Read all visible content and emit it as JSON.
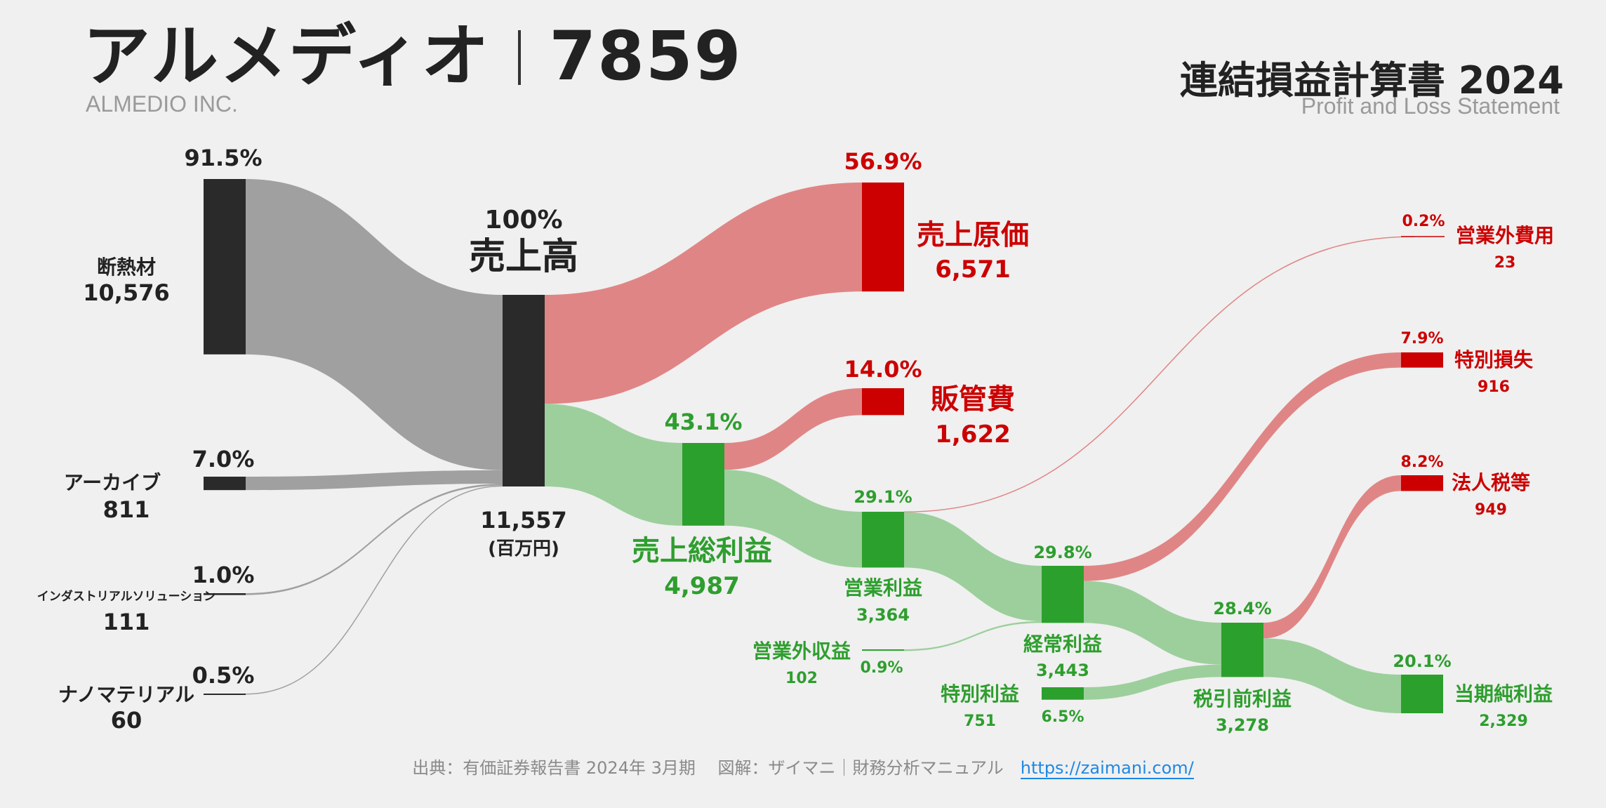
{
  "header": {
    "company": "アルメディオ",
    "code": "7859",
    "company_en": "ALMEDIO INC.",
    "statement_title": "連結損益計算書 2024",
    "statement_en": "Profit and Loss Statement"
  },
  "footer": {
    "source": "出典：有価証券報告書 2024年 3月期　 図解：ザイマニ｜財務分析マニュアル",
    "url": "https://zaimani.com/"
  },
  "colors": {
    "node_dark": "#2a2a2a",
    "flow_gray": "#a0a0a0",
    "cost_red": "#cc0000",
    "flow_red": "#e08585",
    "profit_green": "#2ca02c",
    "flow_green": "#9ccf9c",
    "label_green": "#2e9e2e",
    "label_dark": "#222222"
  },
  "chart_data": {
    "type": "sankey",
    "unit": "(百万円)",
    "segments": [
      {
        "name": "断熱材",
        "value": 10576,
        "pct": "91.5%"
      },
      {
        "name": "アーカイブ",
        "value": 811,
        "pct": "7.0%"
      },
      {
        "name": "インダストリアルソリューション",
        "value": 111,
        "pct": "1.0%"
      },
      {
        "name": "ナノマテリアル",
        "value": 60,
        "pct": "0.5%"
      }
    ],
    "revenue": {
      "name": "売上高",
      "value": 11557,
      "value_label": "11,557",
      "pct": "100%"
    },
    "cost_of_sales": {
      "name": "売上原価",
      "value": 6571,
      "value_label": "6,571",
      "pct": "56.9%"
    },
    "gross_profit": {
      "name": "売上総利益",
      "value": 4987,
      "value_label": "4,987",
      "pct": "43.1%"
    },
    "sga": {
      "name": "販管費",
      "value": 1622,
      "value_label": "1,622",
      "pct": "14.0%"
    },
    "operating_profit": {
      "name": "営業利益",
      "value": 3364,
      "value_label": "3,364",
      "pct": "29.1%"
    },
    "non_operating_expense": {
      "name": "営業外費用",
      "value": 23,
      "value_label": "23",
      "pct": "0.2%"
    },
    "non_operating_income": {
      "name": "営業外収益",
      "value": 102,
      "value_label": "102",
      "pct": "0.9%"
    },
    "ordinary_profit": {
      "name": "経常利益",
      "value": 3443,
      "value_label": "3,443",
      "pct": "29.8%"
    },
    "extraordinary_loss": {
      "name": "特別損失",
      "value": 916,
      "value_label": "916",
      "pct": "7.9%"
    },
    "extraordinary_income": {
      "name": "特別利益",
      "value": 751,
      "value_label": "751",
      "pct": "6.5%"
    },
    "pretax_profit": {
      "name": "税引前利益",
      "value": 3278,
      "value_label": "3,278",
      "pct": "28.4%"
    },
    "income_tax": {
      "name": "法人税等",
      "value": 949,
      "value_label": "949",
      "pct": "8.2%"
    },
    "net_profit": {
      "name": "当期純利益",
      "value": 2329,
      "value_label": "2,329",
      "pct": "20.1%"
    }
  }
}
